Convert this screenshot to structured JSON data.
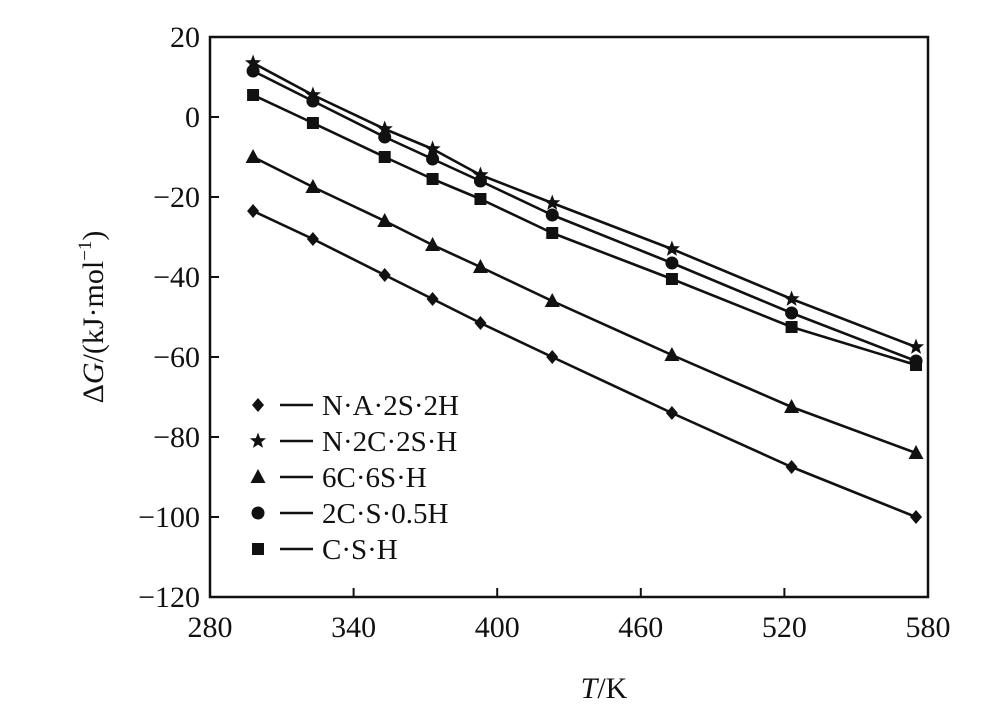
{
  "chart_data": {
    "type": "line",
    "xlabel_italic": "T",
    "xlabel_rest": "/K",
    "ylabel_prefix": "Δ",
    "ylabel_italic": "G",
    "ylabel_rest": "/(kJ·mol",
    "ylabel_sup": "−1",
    "ylabel_close": ")",
    "xlim": [
      280,
      580
    ],
    "ylim": [
      -120,
      20
    ],
    "xticks": [
      280,
      340,
      400,
      460,
      520,
      580
    ],
    "yticks": [
      20,
      0,
      -20,
      -40,
      -60,
      -80,
      -100,
      -120
    ],
    "xtick_labels": [
      "280",
      "340",
      "400",
      "460",
      "520",
      "580"
    ],
    "ytick_labels": [
      "20",
      "0",
      "−20",
      "−40",
      "−60",
      "−80",
      "−100",
      "−120"
    ],
    "x": [
      298,
      323,
      353,
      373,
      393,
      423,
      473,
      523,
      575
    ],
    "grid": false,
    "legend_position": "lower-left",
    "series": [
      {
        "name": "N·A·2S·2H",
        "marker": "diamond",
        "values": [
          -23.5,
          -30.5,
          -39.5,
          -45.5,
          -51.5,
          -60,
          -74,
          -87.5,
          -100
        ]
      },
      {
        "name": "N·2C·2S·H",
        "marker": "star",
        "values": [
          13.5,
          5.5,
          -3,
          -8,
          -14.5,
          -21.5,
          -33,
          -45.5,
          -57.5
        ]
      },
      {
        "name": "6C·6S·H",
        "marker": "triangle",
        "values": [
          -10,
          -17.5,
          -26,
          -32,
          -37.5,
          -46,
          -59.5,
          -72.5,
          -84
        ]
      },
      {
        "name": "2C·S·0.5H",
        "marker": "circle",
        "values": [
          11.5,
          4,
          -5,
          -10.5,
          -16,
          -24.5,
          -36.5,
          -49,
          -61
        ]
      },
      {
        "name": "C·S·H",
        "marker": "square",
        "values": [
          5.5,
          -1.5,
          -10,
          -15.5,
          -20.5,
          -29,
          -40.5,
          -52.5,
          -62
        ]
      }
    ]
  }
}
